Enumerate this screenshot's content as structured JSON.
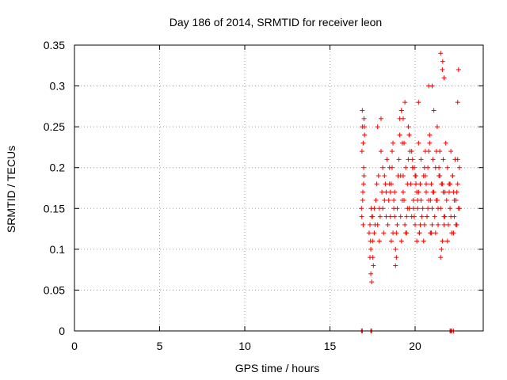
{
  "chart_data": {
    "type": "scatter",
    "title": "Day 186 of 2014, SRMTID for receiver leon",
    "xlabel": "GPS time / hours",
    "ylabel": "SRMTID / TECUs",
    "xlim": [
      0,
      24
    ],
    "ylim": [
      0,
      0.35
    ],
    "xticks": [
      0,
      5,
      10,
      15,
      20
    ],
    "xtick_labels": [
      "0",
      "5",
      "10",
      "15",
      "20"
    ],
    "yticks": [
      0,
      0.05,
      0.1,
      0.15,
      0.2,
      0.25,
      0.3,
      0.35
    ],
    "ytick_labels": [
      "0",
      "0.05",
      "0.1",
      "0.15",
      "0.2",
      "0.25",
      "0.3",
      "0.35"
    ],
    "grid": true,
    "marker": "+",
    "color": "#ff0000",
    "series": [
      {
        "name": "SRMTID",
        "x": [
          16.85,
          16.88,
          16.9,
          16.93,
          16.95,
          16.98,
          17.0,
          17.03,
          16.87,
          16.92,
          16.97,
          17.02,
          16.9,
          16.95,
          17.0,
          17.3,
          17.35,
          17.4,
          17.45,
          17.5,
          17.55,
          17.6,
          17.65,
          17.4,
          17.45,
          17.5,
          17.35,
          17.6,
          17.42,
          17.38,
          17.52,
          17.7,
          17.75,
          17.8,
          17.85,
          17.9,
          17.95,
          18.0,
          18.05,
          18.1,
          18.15,
          18.2,
          18.25,
          18.3,
          18.35,
          18.4,
          17.8,
          17.9,
          18.0,
          18.1,
          18.2,
          18.3,
          18.45,
          18.5,
          18.55,
          18.6,
          18.65,
          18.7,
          18.75,
          18.8,
          18.85,
          18.9,
          18.95,
          19.0,
          18.6,
          18.7,
          18.8,
          18.9,
          18.55,
          18.65,
          18.75,
          18.85,
          18.95,
          18.5,
          19.05,
          19.1,
          19.15,
          19.2,
          19.25,
          19.3,
          19.35,
          19.4,
          19.45,
          19.5,
          19.55,
          19.6,
          19.65,
          19.7,
          19.1,
          19.2,
          19.3,
          19.4,
          19.5,
          19.6,
          19.15,
          19.25,
          19.35,
          19.45,
          19.55,
          19.65,
          19.75,
          19.8,
          19.85,
          19.9,
          19.95,
          20.0,
          20.05,
          20.1,
          20.15,
          20.2,
          20.25,
          20.3,
          20.35,
          20.4,
          19.8,
          19.9,
          20.0,
          20.1,
          20.2,
          20.3,
          19.85,
          19.95,
          20.05,
          20.15,
          20.25,
          20.35,
          20.45,
          20.5,
          20.55,
          20.6,
          20.65,
          20.7,
          20.75,
          20.8,
          20.85,
          20.9,
          20.95,
          21.0,
          21.05,
          21.1,
          20.5,
          20.6,
          20.7,
          20.8,
          20.9,
          21.0,
          20.55,
          20.65,
          20.75,
          20.85,
          20.95,
          21.05,
          21.15,
          21.2,
          21.25,
          21.3,
          21.35,
          21.4,
          21.45,
          21.5,
          21.55,
          21.6,
          21.65,
          21.7,
          21.75,
          21.8,
          21.2,
          21.3,
          21.4,
          21.5,
          21.6,
          21.7,
          21.25,
          21.35,
          21.45,
          21.55,
          21.65,
          21.75,
          21.85,
          21.9,
          21.95,
          22.0,
          22.05,
          22.1,
          22.15,
          22.2,
          22.25,
          22.3,
          22.35,
          22.4,
          22.45,
          22.5,
          22.55,
          22.6,
          21.9,
          22.0,
          22.1,
          22.2,
          22.3,
          22.4,
          22.5,
          22.6,
          22.05,
          22.25,
          22.45,
          20.2,
          20.8,
          21.5,
          21.6,
          21.7,
          21.62,
          22.5,
          22.55,
          19.2,
          19.3,
          21.0,
          21.1,
          16.85,
          16.9,
          17.4,
          17.45,
          22.05,
          22.1,
          22.15,
          22.25
        ],
        "y": [
          0.15,
          0.22,
          0.25,
          0.17,
          0.13,
          0.2,
          0.26,
          0.24,
          0.14,
          0.16,
          0.18,
          0.25,
          0.27,
          0.23,
          0.19,
          0.12,
          0.09,
          0.07,
          0.14,
          0.11,
          0.08,
          0.15,
          0.13,
          0.1,
          0.06,
          0.14,
          0.13,
          0.12,
          0.15,
          0.11,
          0.09,
          0.16,
          0.18,
          0.13,
          0.19,
          0.15,
          0.14,
          0.22,
          0.17,
          0.2,
          0.12,
          0.16,
          0.18,
          0.14,
          0.21,
          0.13,
          0.25,
          0.11,
          0.26,
          0.15,
          0.19,
          0.17,
          0.16,
          0.2,
          0.14,
          0.18,
          0.22,
          0.12,
          0.15,
          0.17,
          0.1,
          0.09,
          0.13,
          0.19,
          0.11,
          0.23,
          0.14,
          0.12,
          0.17,
          0.2,
          0.16,
          0.08,
          0.15,
          0.18,
          0.21,
          0.24,
          0.14,
          0.27,
          0.16,
          0.19,
          0.23,
          0.13,
          0.2,
          0.12,
          0.18,
          0.25,
          0.15,
          0.22,
          0.26,
          0.11,
          0.17,
          0.28,
          0.14,
          0.21,
          0.19,
          0.23,
          0.16,
          0.12,
          0.15,
          0.24,
          0.18,
          0.14,
          0.21,
          0.16,
          0.2,
          0.13,
          0.19,
          0.17,
          0.15,
          0.23,
          0.12,
          0.18,
          0.16,
          0.14,
          0.22,
          0.15,
          0.19,
          0.11,
          0.17,
          0.13,
          0.2,
          0.14,
          0.18,
          0.16,
          0.12,
          0.21,
          0.15,
          0.19,
          0.13,
          0.22,
          0.17,
          0.14,
          0.2,
          0.16,
          0.23,
          0.12,
          0.18,
          0.15,
          0.21,
          0.17,
          0.11,
          0.19,
          0.14,
          0.22,
          0.16,
          0.13,
          0.2,
          0.18,
          0.15,
          0.24,
          0.12,
          0.17,
          0.14,
          0.2,
          0.16,
          0.25,
          0.13,
          0.19,
          0.22,
          0.15,
          0.18,
          0.11,
          0.21,
          0.14,
          0.17,
          0.23,
          0.12,
          0.16,
          0.2,
          0.09,
          0.18,
          0.13,
          0.22,
          0.15,
          0.19,
          0.1,
          0.17,
          0.14,
          0.16,
          0.2,
          0.13,
          0.18,
          0.15,
          0.22,
          0.12,
          0.19,
          0.17,
          0.14,
          0.21,
          0.16,
          0.13,
          0.18,
          0.15,
          0.2,
          0.11,
          0.17,
          0.14,
          0.19,
          0.16,
          0.13,
          0.21,
          0.15,
          0.18,
          0.12,
          0.17,
          0.28,
          0.3,
          0.34,
          0.32,
          0.31,
          0.33,
          0.28,
          0.32,
          0.27,
          0.26,
          0.3,
          0.27,
          0.0,
          0.0,
          0.0,
          0.0,
          0.0,
          0.0,
          0.0,
          0.0
        ]
      }
    ]
  }
}
